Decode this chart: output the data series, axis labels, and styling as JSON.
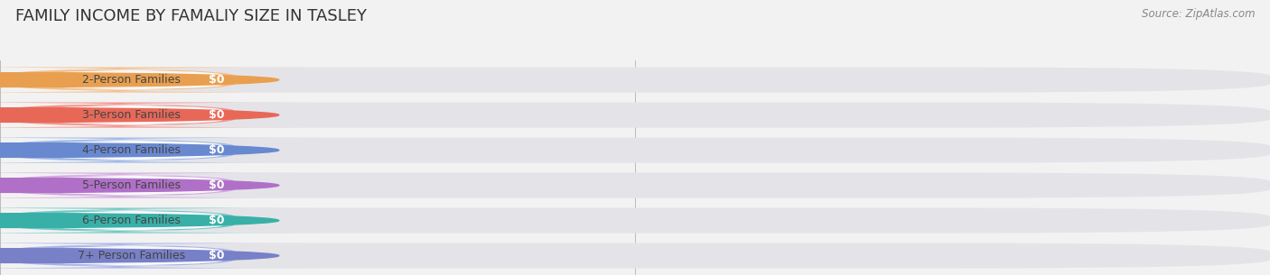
{
  "title": "FAMILY INCOME BY FAMALIY SIZE IN TASLEY",
  "source": "Source: ZipAtlas.com",
  "categories": [
    "2-Person Families",
    "3-Person Families",
    "4-Person Families",
    "5-Person Families",
    "6-Person Families",
    "7+ Person Families"
  ],
  "values": [
    0,
    0,
    0,
    0,
    0,
    0
  ],
  "bar_colors": [
    "#F5C08A",
    "#F5948A",
    "#9FB8E8",
    "#D4A8E0",
    "#6EC9C4",
    "#A8B4E8"
  ],
  "dot_colors": [
    "#E8A050",
    "#E86858",
    "#6888D0",
    "#B070C8",
    "#38B0A8",
    "#7880C8"
  ],
  "background_color": "#f2f2f2",
  "bar_bg_color": "#e4e4e8",
  "title_fontsize": 13,
  "source_fontsize": 8.5,
  "label_fontsize": 9,
  "value_fontsize": 9,
  "xlim": [
    0,
    1
  ],
  "figsize": [
    14.06,
    3.05
  ],
  "dpi": 100
}
